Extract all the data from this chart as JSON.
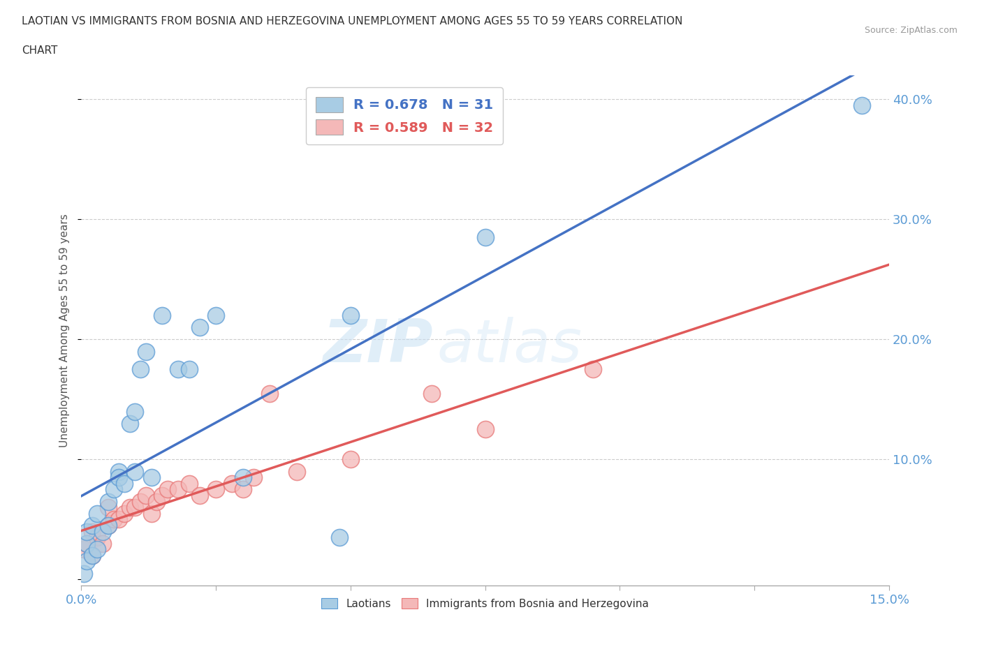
{
  "title_line1": "LAOTIAN VS IMMIGRANTS FROM BOSNIA AND HERZEGOVINA UNEMPLOYMENT AMONG AGES 55 TO 59 YEARS CORRELATION",
  "title_line2": "CHART",
  "source_text": "Source: ZipAtlas.com",
  "ylabel": "Unemployment Among Ages 55 to 59 years",
  "xlim": [
    0.0,
    0.15
  ],
  "ylim": [
    -0.005,
    0.42
  ],
  "xticks": [
    0.0,
    0.025,
    0.05,
    0.075,
    0.1,
    0.125,
    0.15
  ],
  "xtick_labels": [
    "0.0%",
    "",
    "",
    "",
    "",
    "",
    "15.0%"
  ],
  "ytick_labels_right": [
    "",
    "10.0%",
    "20.0%",
    "30.0%",
    "40.0%"
  ],
  "yticks_right": [
    0.0,
    0.1,
    0.2,
    0.3,
    0.4
  ],
  "color_laotian": "#a8cce4",
  "color_laotian_edge": "#5b9bd5",
  "color_bosnia": "#f4b8b8",
  "color_bosnia_edge": "#e87878",
  "color_laotian_line": "#4472c4",
  "color_bosnia_line": "#e05a5a",
  "legend_r1": "R = 0.678",
  "legend_n1": "N = 31",
  "legend_r2": "R = 0.589",
  "legend_n2": "N = 32",
  "watermark_zip": "ZIP",
  "watermark_atlas": "atlas",
  "laotian_x": [
    0.0005,
    0.001,
    0.001,
    0.001,
    0.002,
    0.002,
    0.003,
    0.003,
    0.004,
    0.005,
    0.005,
    0.006,
    0.007,
    0.007,
    0.008,
    0.009,
    0.01,
    0.01,
    0.011,
    0.012,
    0.013,
    0.015,
    0.018,
    0.02,
    0.022,
    0.025,
    0.03,
    0.048,
    0.05,
    0.075,
    0.145
  ],
  "laotian_y": [
    0.005,
    0.015,
    0.03,
    0.04,
    0.02,
    0.045,
    0.025,
    0.055,
    0.04,
    0.045,
    0.065,
    0.075,
    0.09,
    0.085,
    0.08,
    0.13,
    0.14,
    0.09,
    0.175,
    0.19,
    0.085,
    0.22,
    0.175,
    0.175,
    0.21,
    0.22,
    0.085,
    0.035,
    0.22,
    0.285,
    0.395
  ],
  "bosnia_x": [
    0.0005,
    0.001,
    0.002,
    0.002,
    0.003,
    0.004,
    0.005,
    0.005,
    0.006,
    0.007,
    0.008,
    0.009,
    0.01,
    0.011,
    0.012,
    0.013,
    0.014,
    0.015,
    0.016,
    0.018,
    0.02,
    0.022,
    0.025,
    0.028,
    0.03,
    0.032,
    0.035,
    0.04,
    0.05,
    0.065,
    0.075,
    0.095
  ],
  "bosnia_y": [
    0.025,
    0.03,
    0.02,
    0.04,
    0.035,
    0.03,
    0.045,
    0.06,
    0.05,
    0.05,
    0.055,
    0.06,
    0.06,
    0.065,
    0.07,
    0.055,
    0.065,
    0.07,
    0.075,
    0.075,
    0.08,
    0.07,
    0.075,
    0.08,
    0.075,
    0.085,
    0.155,
    0.09,
    0.1,
    0.155,
    0.125,
    0.175
  ]
}
